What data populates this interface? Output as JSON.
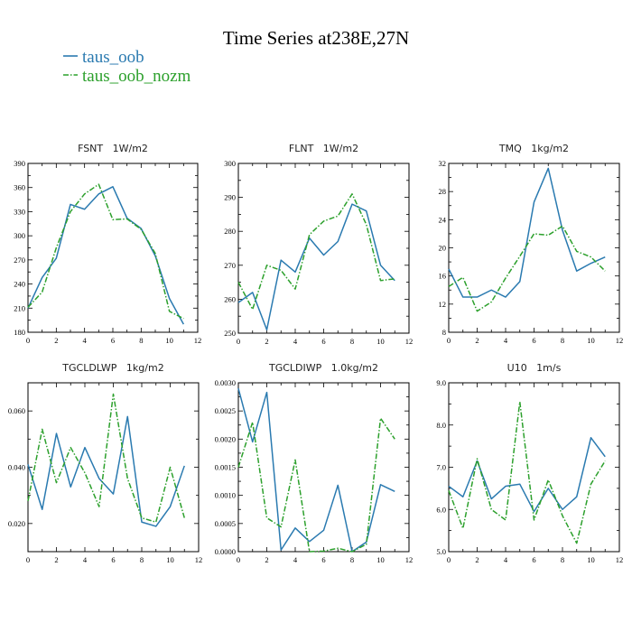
{
  "figure": {
    "title": "Time Series at238E,27N",
    "legend": [
      {
        "label": "taus_oob",
        "color": "#2a7ab0",
        "dash": false
      },
      {
        "label": "taus_oob_nozm",
        "color": "#2ca02c",
        "dash": true
      }
    ]
  },
  "chart_data": [
    {
      "type": "line",
      "title": "FSNT   1W/m2",
      "xlim": [
        0,
        12
      ],
      "ylim": [
        180,
        390
      ],
      "xticks": [
        0,
        2,
        4,
        6,
        8,
        10,
        12
      ],
      "yticks": [
        180,
        210,
        240,
        270,
        300,
        330,
        360,
        390
      ],
      "ytick_labels": [
        "180",
        "210",
        "240",
        "270",
        "300",
        "330",
        "360",
        "390"
      ],
      "x": [
        0,
        1,
        2,
        3,
        4,
        5,
        6,
        7,
        8,
        9,
        10,
        11
      ],
      "series": [
        {
          "name": "taus_oob",
          "values": [
            210,
            248,
            272,
            339,
            333,
            352,
            361,
            322,
            309,
            275,
            222,
            190
          ]
        },
        {
          "name": "taus_oob_nozm",
          "values": [
            211,
            230,
            285,
            330,
            352,
            364,
            320,
            321,
            308,
            278,
            206,
            197
          ]
        }
      ]
    },
    {
      "type": "line",
      "title": "FLNT   1W/m2",
      "xlim": [
        0,
        12
      ],
      "ylim": [
        250,
        300
      ],
      "xticks": [
        0,
        2,
        4,
        6,
        8,
        10,
        12
      ],
      "yticks": [
        250,
        260,
        270,
        280,
        290,
        300
      ],
      "ytick_labels": [
        "250",
        "260",
        "270",
        "280",
        "290",
        "300"
      ],
      "x": [
        0,
        1,
        2,
        3,
        4,
        5,
        6,
        7,
        8,
        9,
        10,
        11
      ],
      "series": [
        {
          "name": "taus_oob",
          "values": [
            259,
            262,
            251,
            271.5,
            268,
            278,
            273,
            277,
            288,
            286,
            270,
            265.5
          ]
        },
        {
          "name": "taus_oob_nozm",
          "values": [
            265,
            257,
            270,
            268.5,
            263,
            279,
            283,
            284.5,
            291,
            282,
            265.5,
            266
          ]
        }
      ]
    },
    {
      "type": "line",
      "title": "TMQ   1kg/m2",
      "xlim": [
        0,
        12
      ],
      "ylim": [
        8,
        32
      ],
      "xticks": [
        0,
        2,
        4,
        6,
        8,
        10,
        12
      ],
      "yticks": [
        8,
        12,
        16,
        20,
        24,
        28,
        32
      ],
      "ytick_labels": [
        "8",
        "12",
        "16",
        "20",
        "24",
        "28",
        "32"
      ],
      "x": [
        0,
        1,
        2,
        3,
        4,
        5,
        6,
        7,
        8,
        9,
        10,
        11
      ],
      "series": [
        {
          "name": "taus_oob",
          "values": [
            17.0,
            13.0,
            13.0,
            14.0,
            13.0,
            15.2,
            26.5,
            31.3,
            22.5,
            16.7,
            17.8,
            18.7
          ]
        },
        {
          "name": "taus_oob_nozm",
          "values": [
            14.5,
            15.8,
            11.0,
            12.3,
            15.7,
            18.8,
            22.0,
            21.8,
            23.1,
            19.5,
            18.7,
            16.7
          ]
        }
      ]
    },
    {
      "type": "line",
      "title": "TGCLDLWP   1kg/m2",
      "xlim": [
        0,
        12
      ],
      "ylim": [
        0.01,
        0.07
      ],
      "xticks": [
        0,
        2,
        4,
        6,
        8,
        10,
        12
      ],
      "yticks": [
        0.02,
        0.04,
        0.06
      ],
      "ytick_labels": [
        "0.020",
        "0.040",
        "0.060"
      ],
      "x": [
        0,
        1,
        2,
        3,
        4,
        5,
        6,
        7,
        8,
        9,
        10,
        11
      ],
      "series": [
        {
          "name": "taus_oob",
          "values": [
            0.041,
            0.025,
            0.052,
            0.033,
            0.047,
            0.036,
            0.0305,
            0.058,
            0.0205,
            0.019,
            0.026,
            0.0405
          ]
        },
        {
          "name": "taus_oob_nozm",
          "values": [
            0.028,
            0.0535,
            0.0345,
            0.047,
            0.038,
            0.026,
            0.066,
            0.036,
            0.022,
            0.0205,
            0.04,
            0.022
          ]
        }
      ]
    },
    {
      "type": "line",
      "title": "TGCLDIWP   1.0kg/m2",
      "xlim": [
        0,
        12
      ],
      "ylim": [
        0,
        0.003
      ],
      "xticks": [
        0,
        2,
        4,
        6,
        8,
        10,
        12
      ],
      "yticks": [
        0,
        0.0005,
        0.001,
        0.0015,
        0.002,
        0.0025,
        0.003
      ],
      "ytick_labels": [
        "0.0000",
        "0.0005",
        "0.0010",
        "0.0015",
        "0.0020",
        "0.0025",
        "0.0030"
      ],
      "x": [
        0,
        1,
        2,
        3,
        4,
        5,
        6,
        7,
        8,
        9,
        10,
        11
      ],
      "series": [
        {
          "name": "taus_oob",
          "values": [
            0.0029,
            0.00195,
            0.00283,
            3e-05,
            0.00042,
            0.00018,
            0.00038,
            0.00118,
            0.0,
            0.00017,
            0.00119,
            0.00107
          ]
        },
        {
          "name": "taus_oob_nozm",
          "values": [
            0.0015,
            0.0023,
            0.0006,
            0.00044,
            0.00163,
            0.0,
            1e-05,
            6e-05,
            0.0,
            0.00013,
            0.00237,
            0.002
          ]
        }
      ]
    },
    {
      "type": "line",
      "title": "U10   1m/s",
      "xlim": [
        0,
        12
      ],
      "ylim": [
        5,
        9
      ],
      "xticks": [
        0,
        2,
        4,
        6,
        8,
        10,
        12
      ],
      "yticks": [
        5,
        6,
        7,
        8,
        9
      ],
      "ytick_labels": [
        "5.0",
        "6.0",
        "7.0",
        "8.0",
        "9.0"
      ],
      "x": [
        0,
        1,
        2,
        3,
        4,
        5,
        6,
        7,
        8,
        9,
        10,
        11
      ],
      "series": [
        {
          "name": "taus_oob",
          "values": [
            6.55,
            6.3,
            7.15,
            6.25,
            6.55,
            6.6,
            5.95,
            6.5,
            6.0,
            6.3,
            7.7,
            7.25
          ]
        },
        {
          "name": "taus_oob_nozm",
          "values": [
            6.45,
            5.55,
            7.2,
            6.0,
            5.75,
            8.55,
            5.75,
            6.7,
            5.85,
            5.2,
            6.6,
            7.15
          ]
        }
      ]
    }
  ]
}
